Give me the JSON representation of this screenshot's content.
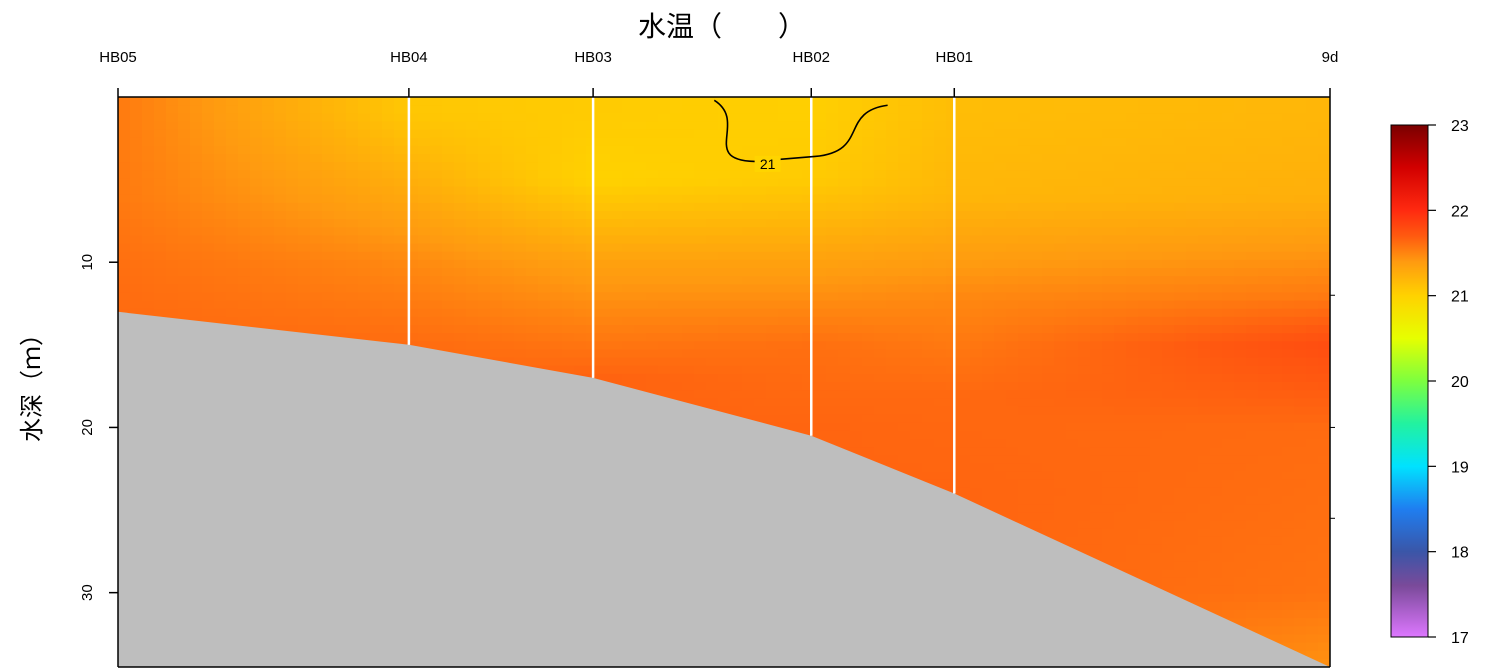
{
  "chart_data": {
    "type": "heatmap",
    "title": "水温（　　）",
    "xlabel": "",
    "ylabel": "水深（ｍ）",
    "stations": [
      {
        "name": "HB05",
        "x": 0.0,
        "bottom_depth": 13.0
      },
      {
        "name": "HB04",
        "x": 24.0,
        "bottom_depth": 15.0
      },
      {
        "name": "HB03",
        "x": 39.2,
        "bottom_depth": 17.0
      },
      {
        "name": "HB02",
        "x": 57.2,
        "bottom_depth": 20.5
      },
      {
        "name": "HB01",
        "x": 69.0,
        "bottom_depth": 24.0
      },
      {
        "name": "9d",
        "x": 100.0,
        "bottom_depth": 34.5
      }
    ],
    "ylim": [
      0,
      34.5
    ],
    "y_reversed": true,
    "yticks": [
      10,
      20,
      30
    ],
    "color_scale": {
      "min": 17,
      "max": 23,
      "ticks": [
        17,
        18,
        19,
        20,
        21,
        22,
        23
      ],
      "stops": [
        {
          "value": 17.0,
          "color": "#dd77ff"
        },
        {
          "value": 17.6,
          "color": "#7a4a9a"
        },
        {
          "value": 18.0,
          "color": "#3a56a8"
        },
        {
          "value": 18.5,
          "color": "#1f7ef0"
        },
        {
          "value": 19.0,
          "color": "#00e2ff"
        },
        {
          "value": 19.5,
          "color": "#22f2a0"
        },
        {
          "value": 20.0,
          "color": "#7dff3f"
        },
        {
          "value": 20.5,
          "color": "#e6ff00"
        },
        {
          "value": 21.0,
          "color": "#ffd200"
        },
        {
          "value": 21.4,
          "color": "#ff9a10"
        },
        {
          "value": 21.7,
          "color": "#ff5a10"
        },
        {
          "value": 22.0,
          "color": "#ff2a10"
        },
        {
          "value": 22.5,
          "color": "#d20000"
        },
        {
          "value": 23.0,
          "color": "#7a0000"
        }
      ]
    },
    "contours": [
      {
        "level": 21,
        "label": "21"
      }
    ],
    "seabed_color": "#bebebe",
    "temperature_profiles": [
      {
        "station": "HB05",
        "values": [
          {
            "depth": 1,
            "temp": 21.55
          },
          {
            "depth": 6,
            "temp": 21.55
          },
          {
            "depth": 10,
            "temp": 21.6
          },
          {
            "depth": 13,
            "temp": 21.62
          }
        ]
      },
      {
        "station": "HB04",
        "values": [
          {
            "depth": 1,
            "temp": 21.08
          },
          {
            "depth": 6,
            "temp": 21.3
          },
          {
            "depth": 10,
            "temp": 21.48
          },
          {
            "depth": 15,
            "temp": 21.62
          }
        ]
      },
      {
        "station": "HB03",
        "values": [
          {
            "depth": 1,
            "temp": 21.05
          },
          {
            "depth": 5,
            "temp": 21.0
          },
          {
            "depth": 10,
            "temp": 21.35
          },
          {
            "depth": 17,
            "temp": 21.66
          }
        ]
      },
      {
        "station": "HB02",
        "values": [
          {
            "depth": 1,
            "temp": 21.02
          },
          {
            "depth": 5,
            "temp": 21.05
          },
          {
            "depth": 10,
            "temp": 21.35
          },
          {
            "depth": 15,
            "temp": 21.6
          },
          {
            "depth": 20,
            "temp": 21.65
          }
        ]
      },
      {
        "station": "HB01",
        "values": [
          {
            "depth": 1,
            "temp": 21.15
          },
          {
            "depth": 6,
            "temp": 21.2
          },
          {
            "depth": 12,
            "temp": 21.48
          },
          {
            "depth": 18,
            "temp": 21.63
          },
          {
            "depth": 24,
            "temp": 21.65
          }
        ]
      },
      {
        "station": "9d",
        "values": [
          {
            "depth": 1,
            "temp": 21.2
          },
          {
            "depth": 6,
            "temp": 21.25
          },
          {
            "depth": 12,
            "temp": 21.55
          },
          {
            "depth": 15,
            "temp": 21.78
          },
          {
            "depth": 20,
            "temp": 21.62
          },
          {
            "depth": 30,
            "temp": 21.58
          },
          {
            "depth": 34,
            "temp": 21.45
          }
        ]
      }
    ]
  }
}
